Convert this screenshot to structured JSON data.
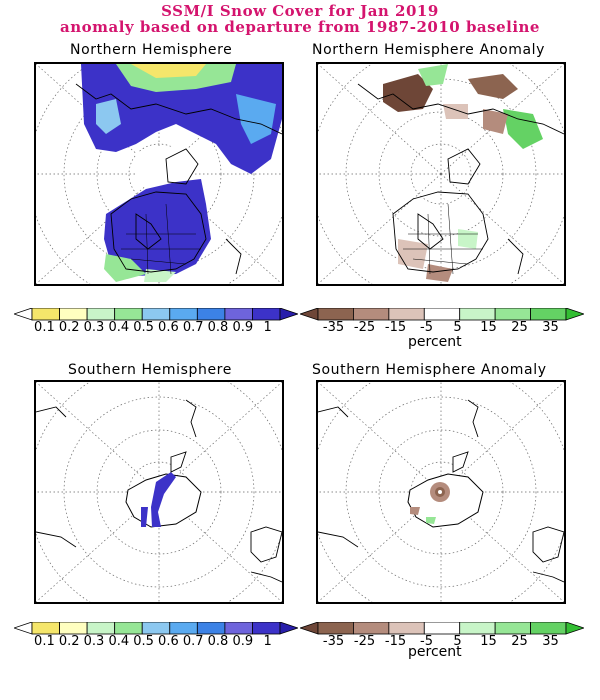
{
  "title": {
    "line1": "SSM/I Snow Cover for Jan 2019",
    "line2": "anomaly based on departure from 1987-2010 baseline"
  },
  "panels": {
    "nh": "Northern Hemisphere",
    "nh_anom": "Northern Hemisphere Anomaly",
    "sh": "Southern Hemisphere",
    "sh_anom": "Southern Hemisphere Anomaly"
  },
  "colorbar_fraction": {
    "labels": [
      "0.1",
      "0.2",
      "0.3",
      "0.4",
      "0.5",
      "0.6",
      "0.7",
      "0.8",
      "0.9",
      "1"
    ],
    "colors": [
      "#ffffff",
      "#f5e66b",
      "#ffffc0",
      "#c8f5c8",
      "#96e696",
      "#8cc8f0",
      "#5aaaf0",
      "#3c82e6",
      "#6e64dc",
      "#3c32c8",
      "#281eaa"
    ]
  },
  "colorbar_anomaly": {
    "labels": [
      "-35",
      "-25",
      "-15",
      "-5",
      "5",
      "15",
      "25",
      "35"
    ],
    "unit": "percent",
    "colors": [
      "#6e4637",
      "#8c6450",
      "#b48c7d",
      "#dcc3b9",
      "#ffffff",
      "#c8f5c8",
      "#96e696",
      "#64d264",
      "#32be32"
    ]
  }
}
